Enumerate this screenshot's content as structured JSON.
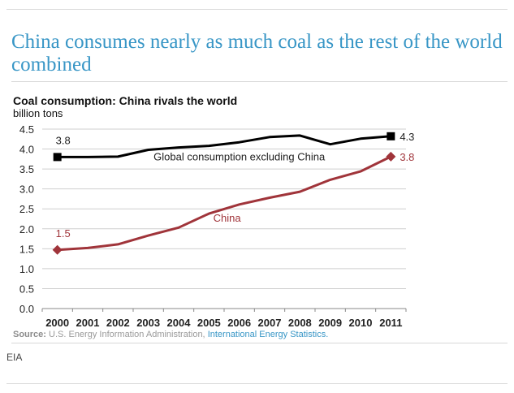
{
  "article": {
    "headline": "China consumes nearly as much coal as the rest of the world combined",
    "credit": "EIA"
  },
  "source": {
    "label": "Source:",
    "text": "U.S. Energy Information Administration,",
    "link_text": "International Energy Statistics."
  },
  "chart_data": {
    "type": "line",
    "title": "Coal consumption: China rivals the world",
    "ylabel": "billion tons",
    "xlabel": "",
    "ylim": [
      0,
      4.5
    ],
    "yticks": [
      "0.0",
      "0.5",
      "1.0",
      "1.5",
      "2.0",
      "2.5",
      "3.0",
      "3.5",
      "4.0",
      "4.5"
    ],
    "grid": true,
    "x": [
      "2000",
      "2001",
      "2002",
      "2003",
      "2004",
      "2005",
      "2006",
      "2007",
      "2008",
      "2009",
      "2010",
      "2011"
    ],
    "series": [
      {
        "name": "Global consumption excluding China",
        "color": "#000000",
        "marker": "square",
        "values": [
          3.8,
          3.8,
          3.81,
          3.98,
          4.04,
          4.08,
          4.17,
          4.3,
          4.34,
          4.12,
          4.26,
          4.32
        ],
        "start_label": "3.8",
        "end_label": "4.3"
      },
      {
        "name": "China",
        "color": "#a0343a",
        "marker": "diamond",
        "values": [
          1.47,
          1.52,
          1.61,
          1.83,
          2.03,
          2.38,
          2.61,
          2.78,
          2.93,
          3.23,
          3.44,
          3.81
        ],
        "start_label": "1.5",
        "end_label": "3.8"
      }
    ]
  }
}
